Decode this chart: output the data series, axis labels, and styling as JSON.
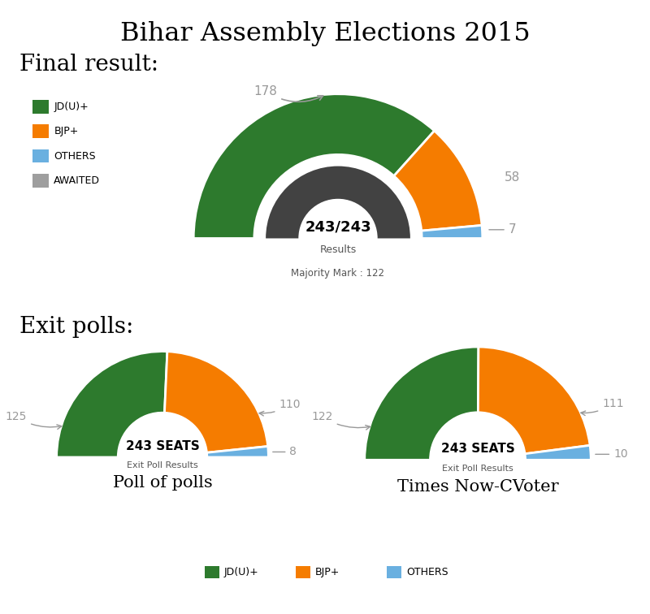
{
  "title": "Bihar Assembly Elections 2015",
  "final_result": {
    "label": "Final result:",
    "values": [
      178,
      58,
      7,
      0
    ],
    "colors": [
      "#2d7a2d",
      "#f57c00",
      "#6ab0e0",
      "#555555"
    ],
    "total": 243,
    "center_text1": "243/243",
    "center_text2": "Results",
    "majority_text": "Majority Mark : 122",
    "legend_labels": [
      "JD(U)+",
      "BJP+",
      "OTHERS",
      "AWAITED"
    ],
    "legend_colors": [
      "#2d7a2d",
      "#f57c00",
      "#6ab0e0",
      "#9e9e9e"
    ],
    "outer_r": 1.0,
    "inner_r": 0.58,
    "dark_outer_r": 0.5,
    "dark_inner_r": 0.27
  },
  "exit_poll1": {
    "label": "Poll of polls",
    "values": [
      125,
      110,
      8
    ],
    "colors": [
      "#2d7a2d",
      "#f57c00",
      "#6ab0e0"
    ],
    "total": 243,
    "center_text1": "243 SEATS",
    "center_text2": "Exit Poll Results",
    "outer_r": 1.0,
    "inner_r": 0.42
  },
  "exit_poll2": {
    "label": "Times Now-CVoter",
    "values": [
      122,
      111,
      10
    ],
    "colors": [
      "#2d7a2d",
      "#f57c00",
      "#6ab0e0"
    ],
    "total": 243,
    "center_text1": "243 SEATS",
    "center_text2": "Exit Poll Results",
    "outer_r": 1.0,
    "inner_r": 0.42
  },
  "exit_polls_label": "Exit polls:",
  "bottom_legend_labels": [
    "JD(U)+",
    "BJP+",
    "OTHERS"
  ],
  "bottom_legend_colors": [
    "#2d7a2d",
    "#f57c00",
    "#6ab0e0"
  ],
  "background_color": "#ffffff",
  "label_color": "#999999"
}
